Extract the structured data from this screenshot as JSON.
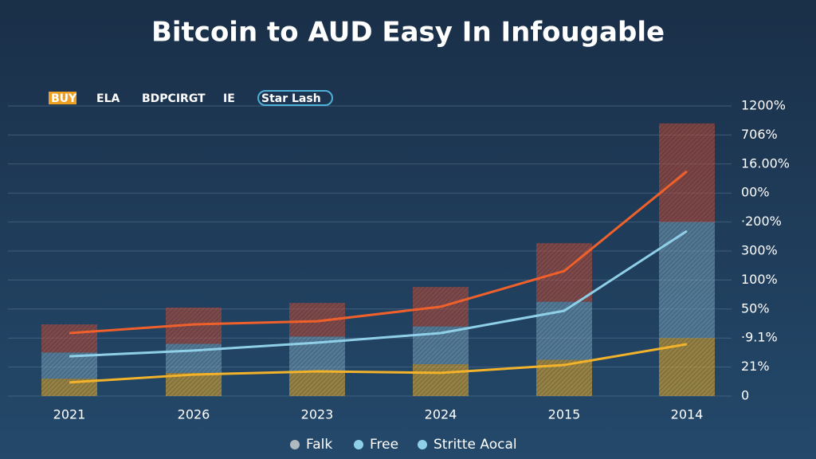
{
  "chart_data": {
    "type": "line",
    "title": "Bitcoin to AUD Easy In Infougable",
    "top_legend": [
      {
        "text": "BUY",
        "color": "#f0a020"
      },
      {
        "text": "ELA",
        "color": "#e8683a"
      },
      {
        "text": "BDPCIRGT",
        "color": "#ffffff"
      },
      {
        "text": "IE",
        "color": "#cfd8e0"
      },
      {
        "text": "Star Lash",
        "color": "#4fb0d8"
      }
    ],
    "categories": [
      "2021",
      "2026",
      "2023",
      "2024",
      "2015",
      "2014"
    ],
    "series": [
      {
        "name": "Falk",
        "color": "#f0602a",
        "values": [
          217,
          247,
          258,
          308,
          431,
          775
        ]
      },
      {
        "name": "Free",
        "color": "#8fd0e8",
        "values": [
          137,
          157,
          184,
          217,
          294,
          569
        ]
      },
      {
        "name": "Stritte Aocal",
        "color": "#f2b22a",
        "values": [
          47,
          74,
          85,
          80,
          107,
          179
        ]
      }
    ],
    "legend_dots": [
      "#b0b8c0",
      "#8fd0e8",
      "#8fd0e8"
    ],
    "bars": [
      {
        "color": "#f2b22a",
        "values": [
          60,
          80,
          85,
          110,
          125,
          200
        ]
      },
      {
        "color": "#7aa6c0",
        "values": [
          90,
          100,
          120,
          130,
          200,
          400
        ]
      },
      {
        "color": "#c8503a",
        "values": [
          97,
          125,
          116,
          136,
          202,
          340
        ]
      }
    ],
    "ylim": [
      0,
      1000
    ],
    "yticks": [
      0,
      {
        "value": 100,
        "label": "21%"
      },
      {
        "value": 200,
        "label": "·9.1%"
      },
      {
        "value": 300,
        "label": "50%"
      },
      {
        "value": 400,
        "label": "100%"
      },
      {
        "value": 500,
        "label": "300%"
      },
      {
        "value": 600,
        "label": "·200%"
      },
      {
        "value": 700,
        "label": "00%"
      },
      {
        "value": 800,
        "label": "16.00%"
      },
      {
        "value": 900,
        "label": "706%"
      },
      {
        "value": 1000,
        "label": "1200%"
      }
    ],
    "grid": true
  }
}
